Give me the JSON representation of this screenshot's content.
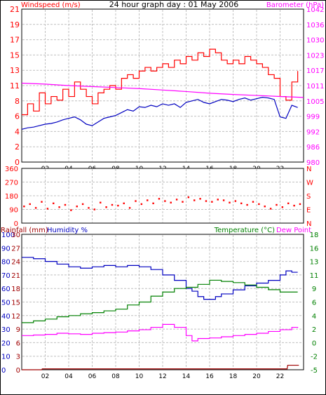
{
  "title": "24 hour graph day : 01 May 2006",
  "colors": {
    "background": "#ffffff",
    "frame": "#000000",
    "grid": "#c0c0c0",
    "red": "#ff0000",
    "blue": "#0000c0",
    "green": "#008000",
    "magenta": "#ff00ff",
    "darkred": "#a00000"
  },
  "chart_data": [
    {
      "id": "wind_baro",
      "type": "line",
      "title": "24 hour graph day : 01 May 2006",
      "left_label": "Windspeed (m/s)",
      "right_label": "Barometer (hPa)",
      "x_ticks": [
        "02",
        "04",
        "06",
        "08",
        "10",
        "12",
        "14",
        "16",
        "18",
        "20",
        "22"
      ],
      "x_range": [
        0,
        24
      ],
      "left_ticks": [
        "0",
        "2",
        "4",
        "6",
        "8",
        "11",
        "13",
        "15",
        "17",
        "19",
        "21"
      ],
      "right_ticks": [
        "980",
        "986",
        "992",
        "999",
        "1005",
        "1011",
        "1017",
        "1023",
        "1030",
        "1036",
        "1042"
      ],
      "grid": true,
      "series": [
        {
          "name": "Windspeed (m/s)",
          "axis": "left",
          "color": "red",
          "x": [
            0,
            0.5,
            1,
            1.5,
            2,
            2.5,
            3,
            3.5,
            4,
            4.5,
            5,
            5.5,
            6,
            6.5,
            7,
            7.5,
            8,
            8.5,
            9,
            9.5,
            10,
            10.5,
            11,
            11.5,
            12,
            12.5,
            13,
            13.5,
            14,
            14.5,
            15,
            15.5,
            16,
            16.5,
            17,
            17.5,
            18,
            18.5,
            19,
            19.5,
            20,
            20.5,
            21,
            21.5,
            22,
            22.5,
            23,
            23.5
          ],
          "values": [
            6.5,
            8,
            7,
            9.5,
            8,
            9,
            8.5,
            10,
            9,
            11,
            10,
            9,
            8,
            9.5,
            10,
            10.5,
            10,
            11.5,
            12,
            11.5,
            12.5,
            13,
            12.5,
            13,
            13.5,
            13,
            14,
            13.5,
            14.5,
            14,
            15,
            14.5,
            15.5,
            15,
            14,
            13.5,
            14,
            13.5,
            14.5,
            14,
            13.5,
            13,
            12,
            11.5,
            9,
            8.5,
            11,
            12.5
          ]
        },
        {
          "name": "Windspeed average",
          "axis": "left",
          "color": "blue",
          "x": [
            0,
            0.5,
            1,
            1.5,
            2,
            2.5,
            3,
            3.5,
            4,
            4.5,
            5,
            5.5,
            6,
            6.5,
            7,
            7.5,
            8,
            8.5,
            9,
            9.5,
            10,
            10.5,
            11,
            11.5,
            12,
            12.5,
            13,
            13.5,
            14,
            14.5,
            15,
            15.5,
            16,
            16.5,
            17,
            17.5,
            18,
            18.5,
            19,
            19.5,
            20,
            20.5,
            21,
            21.5,
            22,
            22.5,
            23,
            23.5
          ],
          "values": [
            4.5,
            4.7,
            4.8,
            5,
            5.2,
            5.3,
            5.5,
            5.8,
            6,
            6.2,
            5.8,
            5.2,
            5,
            5.5,
            6,
            6.2,
            6.4,
            6.8,
            7.2,
            7,
            7.6,
            7.5,
            7.8,
            7.6,
            8,
            7.8,
            8,
            7.5,
            8.2,
            8.4,
            8.6,
            8.2,
            8,
            8.3,
            8.6,
            8.5,
            8.3,
            8.6,
            8.8,
            8.5,
            8.7,
            8.9,
            8.8,
            8.6,
            6.2,
            6,
            7.8,
            7.5
          ]
        },
        {
          "name": "Barometer (hPa)",
          "axis": "right",
          "color": "magenta",
          "x": [
            0,
            2,
            4,
            6,
            8,
            10,
            12,
            14,
            16,
            18,
            20,
            22,
            24
          ],
          "values": [
            1012,
            1011.6,
            1011,
            1010.6,
            1010.2,
            1009.8,
            1009.2,
            1008.6,
            1007.9,
            1007.4,
            1007,
            1006.6,
            1006.2
          ]
        }
      ]
    },
    {
      "id": "wind_direction",
      "type": "scatter",
      "x_range": [
        0,
        24
      ],
      "left_ticks": [
        "360",
        "270",
        "180",
        "90",
        "0"
      ],
      "right_ticks": [
        "N",
        "W",
        "S",
        "E",
        "N"
      ],
      "y_range": [
        0,
        360
      ],
      "series": [
        {
          "name": "Wind direction",
          "color": "red",
          "x": [
            0.2,
            0.7,
            1.2,
            1.7,
            2.2,
            2.7,
            3.2,
            3.7,
            4.2,
            4.7,
            5.2,
            5.7,
            6.2,
            6.7,
            7.2,
            7.7,
            8.2,
            8.7,
            9.2,
            9.7,
            10.2,
            10.7,
            11.2,
            11.7,
            12.2,
            12.7,
            13.2,
            13.7,
            14.2,
            14.7,
            15.2,
            15.7,
            16.2,
            16.7,
            17.2,
            17.7,
            18.2,
            18.7,
            19.2,
            19.7,
            20.2,
            20.7,
            21.2,
            21.7,
            22.2,
            22.7,
            23.2,
            23.7
          ],
          "values": [
            110,
            125,
            100,
            140,
            95,
            130,
            105,
            120,
            85,
            110,
            125,
            100,
            90,
            135,
            105,
            120,
            115,
            130,
            100,
            145,
            125,
            150,
            130,
            160,
            145,
            135,
            155,
            140,
            170,
            150,
            160,
            145,
            140,
            155,
            150,
            135,
            145,
            130,
            120,
            140,
            125,
            110,
            95,
            120,
            105,
            130,
            115,
            125
          ]
        }
      ]
    },
    {
      "id": "temp_hum_rain",
      "type": "line",
      "left_label_1": "Rainfall (mm)",
      "left_label_2": "Humidity %",
      "right_label_1": "Temperature (°C)",
      "right_label_2": "Dew Point",
      "x_ticks": [
        "02",
        "04",
        "06",
        "08",
        "10",
        "12",
        "14",
        "16",
        "18",
        "20",
        "22"
      ],
      "x_range": [
        0,
        24
      ],
      "rain_ticks": [
        "0",
        "3",
        "6",
        "9",
        "12",
        "15",
        "18",
        "21",
        "24",
        "27",
        "30"
      ],
      "humidity_ticks": [
        "0",
        "10",
        "20",
        "30",
        "40",
        "50",
        "60",
        "70",
        "80",
        "90",
        "100"
      ],
      "temp_ticks": [
        "-5",
        "-2",
        "0",
        "2",
        "4",
        "6",
        "9",
        "11",
        "13",
        "16",
        "18"
      ],
      "grid": true,
      "series": [
        {
          "name": "Humidity %",
          "axis": "humidity",
          "color": "blue",
          "x": [
            0,
            1,
            2,
            3,
            4,
            5,
            6,
            7,
            8,
            9,
            10,
            11,
            12,
            13,
            14,
            14.5,
            15,
            15.5,
            16,
            16.5,
            17,
            18,
            19,
            20,
            21,
            22,
            22.5,
            23,
            23.5
          ],
          "values": [
            83,
            82,
            80,
            78,
            76,
            75,
            76,
            77,
            76,
            77,
            76,
            74,
            70,
            66,
            60,
            58,
            54,
            52,
            52,
            54,
            56,
            59,
            62,
            64,
            66,
            70,
            73,
            72,
            72
          ]
        },
        {
          "name": "Temperature (°C)",
          "axis": "temp",
          "color": "green",
          "x": [
            0,
            1,
            2,
            3,
            4,
            5,
            6,
            7,
            8,
            9,
            10,
            11,
            12,
            13,
            14,
            15,
            16,
            17,
            18,
            19,
            20,
            21,
            22,
            23,
            23.5
          ],
          "values": [
            3,
            3.3,
            3.6,
            4,
            4.2,
            4.5,
            4.7,
            5,
            5.3,
            6,
            6.5,
            7.5,
            8.2,
            8.8,
            9,
            9.5,
            10.2,
            10,
            9.8,
            9.4,
            9,
            8.6,
            8.2,
            8.2,
            8.2
          ]
        },
        {
          "name": "Dew Point",
          "axis": "temp",
          "color": "magenta",
          "x": [
            0,
            1,
            2,
            3,
            4,
            5,
            6,
            7,
            8,
            9,
            10,
            11,
            12,
            13,
            14,
            14.5,
            15,
            16,
            17,
            18,
            19,
            20,
            21,
            22,
            23,
            23.5
          ],
          "values": [
            0.8,
            0.9,
            1.0,
            1.2,
            1.1,
            1.0,
            1.2,
            1.3,
            1.4,
            1.6,
            1.8,
            2.2,
            2.7,
            2.2,
            0.8,
            -0.1,
            0.3,
            0.4,
            0.6,
            0.8,
            1.0,
            1.2,
            1.5,
            1.8,
            2.2,
            2.1
          ]
        },
        {
          "name": "Rainfall (mm)",
          "axis": "rain",
          "color": "darkred",
          "x": [
            0,
            1.7,
            1.75,
            22.6,
            22.65,
            23.6
          ],
          "values": [
            0,
            0,
            0.2,
            0.2,
            1.0,
            1.0
          ]
        }
      ]
    }
  ]
}
